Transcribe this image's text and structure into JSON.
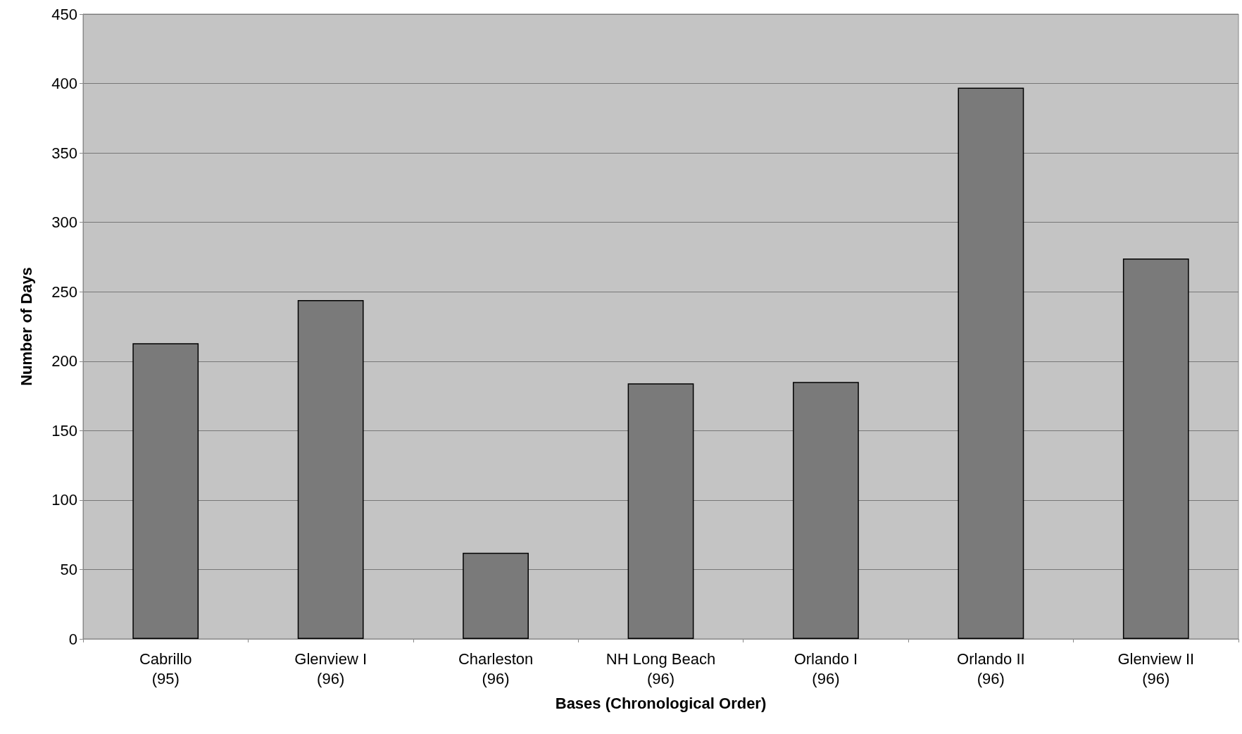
{
  "chart_data": {
    "type": "bar",
    "xlabel": "Bases (Chronological Order)",
    "ylabel": "Number of Days",
    "categories": [
      "Cabrillo (95)",
      "Glenview I (96)",
      "Charleston (96)",
      "NH Long Beach (96)",
      "Orlando I (96)",
      "Orlando II (96)",
      "Glenview II (96)"
    ],
    "values": [
      213,
      244,
      62,
      184,
      185,
      397,
      274
    ],
    "color": "#7a7a7a",
    "ylim": [
      0,
      450
    ],
    "yticks": [
      0,
      50,
      100,
      150,
      200,
      250,
      300,
      350,
      400,
      450
    ],
    "grid": "y"
  }
}
